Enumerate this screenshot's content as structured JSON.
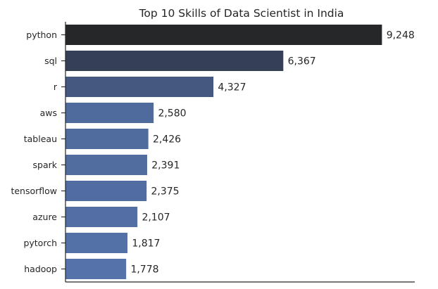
{
  "chart_data": {
    "type": "bar",
    "orientation": "horizontal",
    "title": "Top 10 Skills of Data Scientist in India",
    "xlabel": "",
    "ylabel": "",
    "categories": [
      "python",
      "sql",
      "r",
      "aws",
      "tableau",
      "spark",
      "tensorflow",
      "azure",
      "pytorch",
      "hadoop"
    ],
    "values": [
      9248,
      6367,
      4327,
      2580,
      2426,
      2391,
      2375,
      2107,
      1817,
      1778
    ],
    "value_labels": [
      "9,248",
      "6,367",
      "4,327",
      "2,580",
      "2,426",
      "2,391",
      "2,375",
      "2,107",
      "1,817",
      "1,778"
    ],
    "xlim": [
      0,
      10200
    ],
    "x_ticks_visible": false,
    "grid": false,
    "legend": "none",
    "colors": [
      "#262729",
      "#353f55",
      "#45587f",
      "#4f6a9c",
      "#506b9e",
      "#516c9f",
      "#516ca0",
      "#526ea3",
      "#5370a7",
      "#5572aa"
    ]
  }
}
